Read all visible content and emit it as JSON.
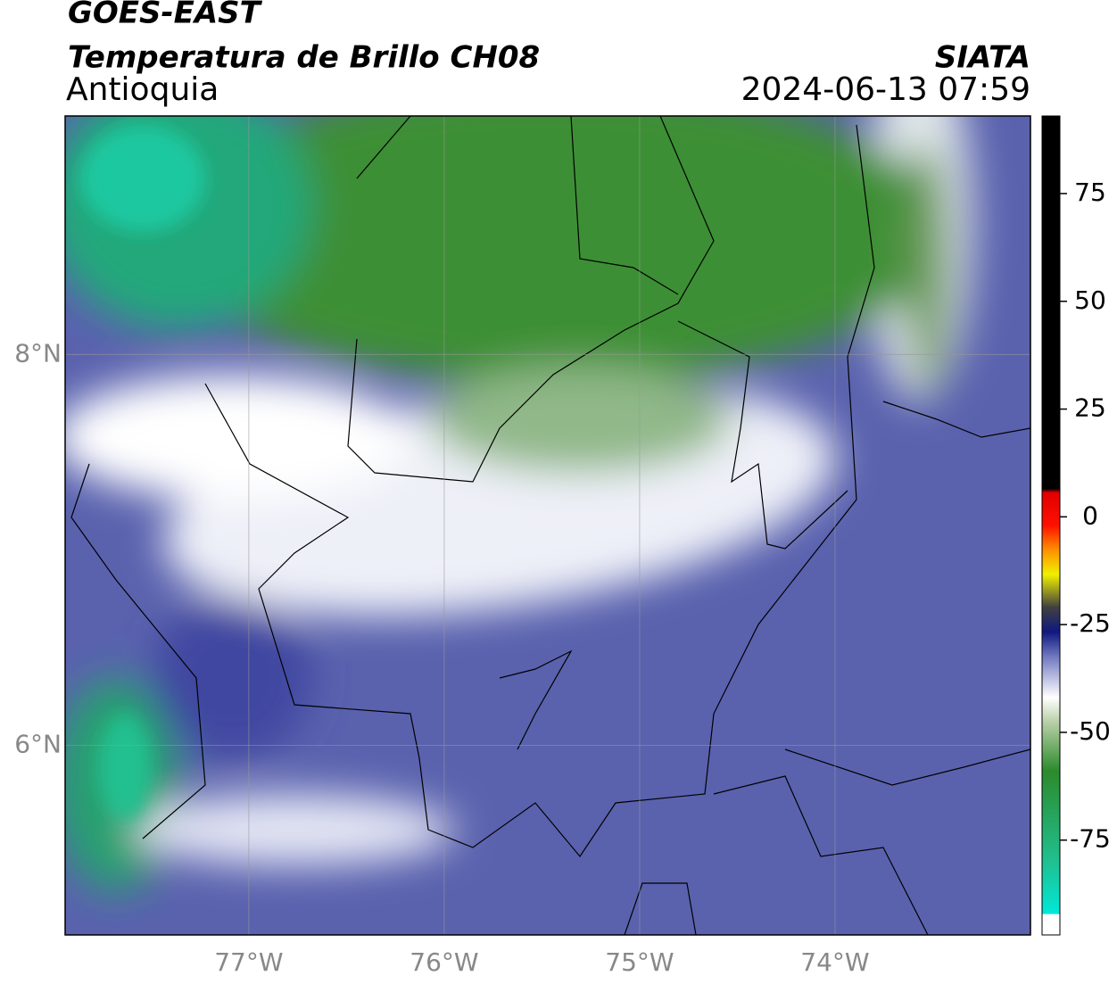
{
  "header": {
    "title": "GOES-EAST",
    "subtitle": "Temperatura de Brillo CH08",
    "region": "Antioquia",
    "source": "SIATA",
    "datetime": "2024-06-13 07:59"
  },
  "map": {
    "xlim": [
      -77.94,
      -73.0
    ],
    "ylim": [
      5.03,
      9.22
    ],
    "xticks": [
      {
        "value": -77,
        "label": "77°W"
      },
      {
        "value": -76,
        "label": "76°W"
      },
      {
        "value": -75,
        "label": "75°W"
      },
      {
        "value": -74,
        "label": "74°W"
      }
    ],
    "yticks": [
      {
        "value": 8,
        "label": "8°N"
      },
      {
        "value": 6,
        "label": "6°N"
      }
    ],
    "grid": true
  },
  "colorbar": {
    "lim": [
      -97,
      93
    ],
    "ticks": [
      75,
      50,
      25,
      0,
      -25,
      -50,
      -75
    ]
  }
}
